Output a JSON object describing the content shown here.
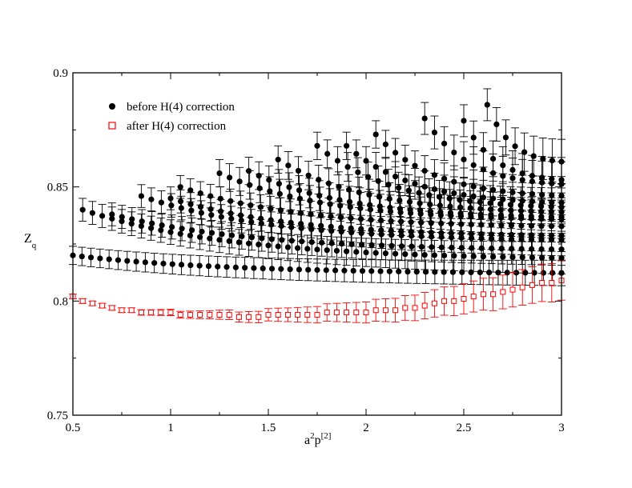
{
  "chart_data": {
    "type": "scatter",
    "title": "",
    "xlabel": {
      "base": "a",
      "sup1": "2",
      "base2": "p",
      "sup2": "[2]"
    },
    "ylabel": {
      "base": "Z",
      "sub": "q"
    },
    "xlim": [
      0.5,
      3.0
    ],
    "ylim": [
      0.75,
      0.9
    ],
    "xticks": [
      0.5,
      1,
      1.5,
      2,
      2.5,
      3
    ],
    "xtick_labels": [
      "0.5",
      "1",
      "1.5",
      "2",
      "2.5",
      "3"
    ],
    "yticks": [
      0.75,
      0.8,
      0.85,
      0.9
    ],
    "ytick_labels": [
      "0.75",
      "0.8",
      "0.85",
      "0.9"
    ],
    "grid": false,
    "legend_position": "top-left",
    "series": [
      {
        "name": "before H(4) correction",
        "marker": "filled-circle",
        "color": "#000000",
        "families": [
          {
            "x_start": 0.5,
            "y_start": 0.82,
            "x_end": 3.0,
            "y_end": 0.812,
            "n": 55,
            "err": 0.004
          },
          {
            "x_start": 0.55,
            "y_start": 0.84,
            "x_end": 3.0,
            "y_end": 0.818,
            "n": 50,
            "err": 0.005
          },
          {
            "x_start": 0.7,
            "y_start": 0.838,
            "x_end": 3.0,
            "y_end": 0.822,
            "n": 46,
            "err": 0.005
          },
          {
            "x_start": 0.85,
            "y_start": 0.846,
            "x_end": 3.0,
            "y_end": 0.826,
            "n": 43,
            "err": 0.005
          },
          {
            "x_start": 1.0,
            "y_start": 0.845,
            "x_end": 3.0,
            "y_end": 0.828,
            "n": 40,
            "err": 0.005
          },
          {
            "x_start": 1.05,
            "y_start": 0.85,
            "x_end": 3.0,
            "y_end": 0.832,
            "n": 39,
            "err": 0.005
          },
          {
            "x_start": 1.25,
            "y_start": 0.856,
            "x_end": 3.0,
            "y_end": 0.835,
            "n": 35,
            "err": 0.006
          },
          {
            "x_start": 1.4,
            "y_start": 0.857,
            "x_end": 3.0,
            "y_end": 0.836,
            "n": 32,
            "err": 0.006
          },
          {
            "x_start": 1.55,
            "y_start": 0.862,
            "x_end": 3.0,
            "y_end": 0.838,
            "n": 29,
            "err": 0.006
          },
          {
            "x_start": 1.75,
            "y_start": 0.868,
            "x_end": 3.0,
            "y_end": 0.84,
            "n": 25,
            "err": 0.006
          },
          {
            "x_start": 1.9,
            "y_start": 0.868,
            "x_end": 3.0,
            "y_end": 0.842,
            "n": 23,
            "err": 0.006
          },
          {
            "x_start": 2.05,
            "y_start": 0.873,
            "x_end": 3.0,
            "y_end": 0.845,
            "n": 20,
            "err": 0.006
          },
          {
            "x_start": 2.3,
            "y_start": 0.88,
            "x_end": 3.0,
            "y_end": 0.85,
            "n": 15,
            "err": 0.007
          },
          {
            "x_start": 2.5,
            "y_start": 0.879,
            "x_end": 3.0,
            "y_end": 0.852,
            "n": 11,
            "err": 0.007
          },
          {
            "x_start": 2.62,
            "y_start": 0.886,
            "x_end": 3.0,
            "y_end": 0.86,
            "n": 9,
            "err": 0.007
          }
        ]
      },
      {
        "name": "after H(4) correction",
        "marker": "open-square",
        "color": "#ff0000",
        "x": [
          0.5,
          0.55,
          0.6,
          0.65,
          0.7,
          0.75,
          0.8,
          0.85,
          0.9,
          0.95,
          1.0,
          1.05,
          1.1,
          1.15,
          1.2,
          1.25,
          1.3,
          1.35,
          1.4,
          1.45,
          1.5,
          1.55,
          1.6,
          1.65,
          1.7,
          1.75,
          1.8,
          1.85,
          1.9,
          1.95,
          2.0,
          2.05,
          2.1,
          2.15,
          2.2,
          2.25,
          2.3,
          2.35,
          2.4,
          2.45,
          2.5,
          2.55,
          2.6,
          2.65,
          2.7,
          2.75,
          2.8,
          2.85,
          2.9,
          2.95,
          3.0
        ],
        "y": [
          0.802,
          0.8,
          0.799,
          0.798,
          0.797,
          0.796,
          0.796,
          0.795,
          0.795,
          0.795,
          0.795,
          0.794,
          0.794,
          0.794,
          0.794,
          0.794,
          0.794,
          0.793,
          0.793,
          0.793,
          0.794,
          0.794,
          0.794,
          0.794,
          0.794,
          0.794,
          0.795,
          0.795,
          0.795,
          0.795,
          0.795,
          0.796,
          0.796,
          0.796,
          0.797,
          0.797,
          0.798,
          0.799,
          0.8,
          0.8,
          0.801,
          0.802,
          0.803,
          0.803,
          0.804,
          0.805,
          0.806,
          0.807,
          0.808,
          0.808,
          0.809
        ],
        "err": [
          0.001,
          0.001,
          0.001,
          0.001,
          0.001,
          0.001,
          0.001,
          0.0012,
          0.0012,
          0.0013,
          0.0014,
          0.0015,
          0.0016,
          0.0017,
          0.0018,
          0.002,
          0.0021,
          0.0022,
          0.0024,
          0.0025,
          0.0027,
          0.0029,
          0.003,
          0.0032,
          0.0034,
          0.0036,
          0.0038,
          0.004,
          0.0042,
          0.0044,
          0.0046,
          0.0048,
          0.005,
          0.0052,
          0.0054,
          0.0056,
          0.0058,
          0.006,
          0.0062,
          0.0064,
          0.0066,
          0.0068,
          0.007,
          0.0072,
          0.0074,
          0.0076,
          0.0078,
          0.008,
          0.0082,
          0.0084,
          0.0086
        ]
      }
    ]
  }
}
